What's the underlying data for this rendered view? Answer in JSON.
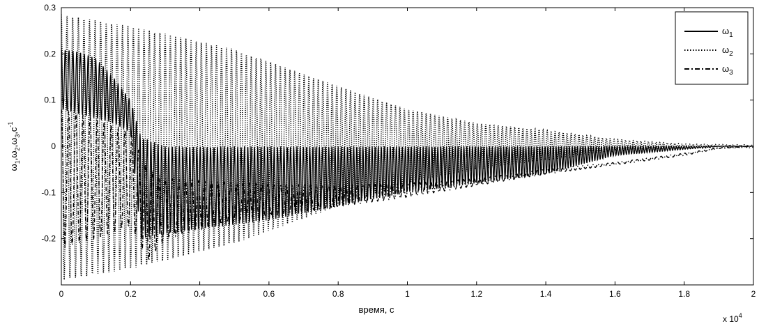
{
  "chart_data": {
    "type": "line",
    "title": "",
    "xlabel": "время, с",
    "ylabel": "ω1,ω2,ω3,с-1",
    "ylabel_parts": {
      "a": "ω",
      "a_sub": "1",
      "sep1": ",",
      "b": "ω",
      "b_sub": "2",
      "sep2": ",",
      "c": "ω",
      "c_sub": "3",
      "sep3": ",",
      "unit": "с",
      "unit_sup": "-1"
    },
    "x_multiplier": {
      "base": "x 10",
      "exp": "4"
    },
    "xlim": [
      0,
      2
    ],
    "ylim": [
      -0.3,
      0.3
    ],
    "x_ticks": [
      "0",
      "0.2",
      "0.4",
      "0.6",
      "0.8",
      "1",
      "1.2",
      "1.4",
      "1.6",
      "1.8",
      "2"
    ],
    "y_ticks": [
      "0.3",
      "0.2",
      "0.1",
      "0",
      "-0.1",
      "-0.2"
    ],
    "legend_position": "top-right",
    "series": [
      {
        "name": "ω1",
        "symbol": "ω",
        "sub": "1",
        "style": "solid",
        "envelope_upper": [
          [
            0,
            0.21
          ],
          [
            0.05,
            0.205
          ],
          [
            0.1,
            0.19
          ],
          [
            0.15,
            0.15
          ],
          [
            0.2,
            0.1
          ],
          [
            0.23,
            0.02
          ],
          [
            0.3,
            0.0
          ],
          [
            0.6,
            0.0
          ],
          [
            1.0,
            0.0
          ],
          [
            1.4,
            0.0
          ],
          [
            1.6,
            0.0
          ],
          [
            1.9,
            0.0
          ],
          [
            2.0,
            0.0
          ]
        ],
        "envelope_lower": [
          [
            0,
            0.08
          ],
          [
            0.05,
            0.07
          ],
          [
            0.1,
            0.06
          ],
          [
            0.15,
            0.05
          ],
          [
            0.2,
            0.03
          ],
          [
            0.23,
            -0.2
          ],
          [
            0.3,
            -0.19
          ],
          [
            0.6,
            -0.16
          ],
          [
            1.0,
            -0.1
          ],
          [
            1.4,
            -0.06
          ],
          [
            1.6,
            -0.02
          ],
          [
            1.9,
            0.0
          ],
          [
            2.0,
            0.0
          ]
        ]
      },
      {
        "name": "ω2",
        "symbol": "ω",
        "sub": "2",
        "style": "dotted",
        "envelope_upper": [
          [
            0,
            0.285
          ],
          [
            0.2,
            0.26
          ],
          [
            0.5,
            0.21
          ],
          [
            0.8,
            0.13
          ],
          [
            1.0,
            0.08
          ],
          [
            1.2,
            0.05
          ],
          [
            1.4,
            0.035
          ],
          [
            1.6,
            0.015
          ],
          [
            1.8,
            0.005
          ],
          [
            2.0,
            0.003
          ]
        ],
        "envelope_lower": [
          [
            0,
            -0.29
          ],
          [
            0.2,
            -0.265
          ],
          [
            0.5,
            -0.21
          ],
          [
            0.8,
            -0.13
          ],
          [
            1.0,
            -0.08
          ],
          [
            1.2,
            -0.05
          ],
          [
            1.4,
            -0.03
          ],
          [
            1.6,
            -0.01
          ],
          [
            1.8,
            -0.005
          ],
          [
            2.0,
            -0.003
          ]
        ]
      },
      {
        "name": "ω3",
        "symbol": "ω",
        "sub": "3",
        "style": "dashdot",
        "envelope_upper": [
          [
            0,
            0.08
          ],
          [
            0.1,
            0.06
          ],
          [
            0.2,
            0.03
          ],
          [
            0.25,
            -0.05
          ],
          [
            0.3,
            -0.07
          ],
          [
            0.5,
            -0.08
          ],
          [
            0.8,
            -0.085
          ],
          [
            1.0,
            -0.08
          ],
          [
            1.2,
            -0.07
          ],
          [
            1.4,
            -0.05
          ],
          [
            1.6,
            -0.035
          ],
          [
            1.8,
            -0.015
          ],
          [
            1.9,
            -0.003
          ],
          [
            2.0,
            0.0
          ]
        ],
        "envelope_lower": [
          [
            0,
            -0.22
          ],
          [
            0.1,
            -0.2
          ],
          [
            0.2,
            -0.17
          ],
          [
            0.25,
            -0.25
          ],
          [
            0.3,
            -0.2
          ],
          [
            0.5,
            -0.16
          ],
          [
            0.8,
            -0.13
          ],
          [
            1.0,
            -0.11
          ],
          [
            1.2,
            -0.085
          ],
          [
            1.4,
            -0.06
          ],
          [
            1.6,
            -0.04
          ],
          [
            1.8,
            -0.02
          ],
          [
            1.9,
            -0.005
          ],
          [
            2.0,
            0.0
          ]
        ]
      }
    ]
  }
}
